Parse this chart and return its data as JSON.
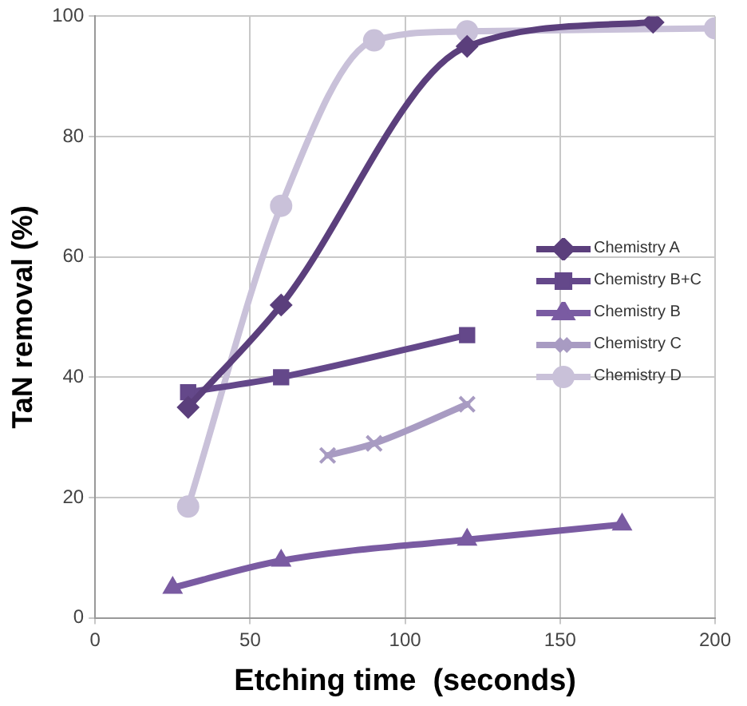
{
  "chart_data": {
    "type": "line",
    "xlabel": "Etching time  (seconds)",
    "ylabel": "TaN removal (%)",
    "xlim": [
      0,
      200
    ],
    "xticks": [
      0,
      50,
      100,
      150,
      200
    ],
    "ylim": [
      0,
      100
    ],
    "yticks": [
      0,
      20,
      40,
      60,
      80,
      100
    ],
    "grid": true,
    "legend": "right",
    "line_style": "solid",
    "series": [
      {
        "name": "Chemistry A",
        "color": "#5b3f7c",
        "marker": "diamond",
        "x": [
          30,
          60,
          120,
          180
        ],
        "values": [
          35,
          52,
          95,
          99
        ]
      },
      {
        "name": "Chemistry B+C",
        "color": "#64488a",
        "marker": "square",
        "x": [
          30,
          60,
          120
        ],
        "values": [
          37.5,
          40,
          47
        ]
      },
      {
        "name": "Chemistry B",
        "color": "#7a5ba2",
        "marker": "triangle",
        "x": [
          25,
          60,
          120,
          170
        ],
        "values": [
          5,
          9.5,
          13,
          15.5
        ]
      },
      {
        "name": "Chemistry C",
        "color": "#a89bc2",
        "marker": "cross",
        "x": [
          75,
          90,
          120
        ],
        "values": [
          27,
          29,
          35.5
        ]
      },
      {
        "name": "Chemistry D",
        "color": "#c9c1d9",
        "marker": "circle",
        "x": [
          30,
          60,
          90,
          120,
          200
        ],
        "values": [
          18.5,
          68.5,
          96,
          97.5,
          98
        ]
      }
    ]
  }
}
